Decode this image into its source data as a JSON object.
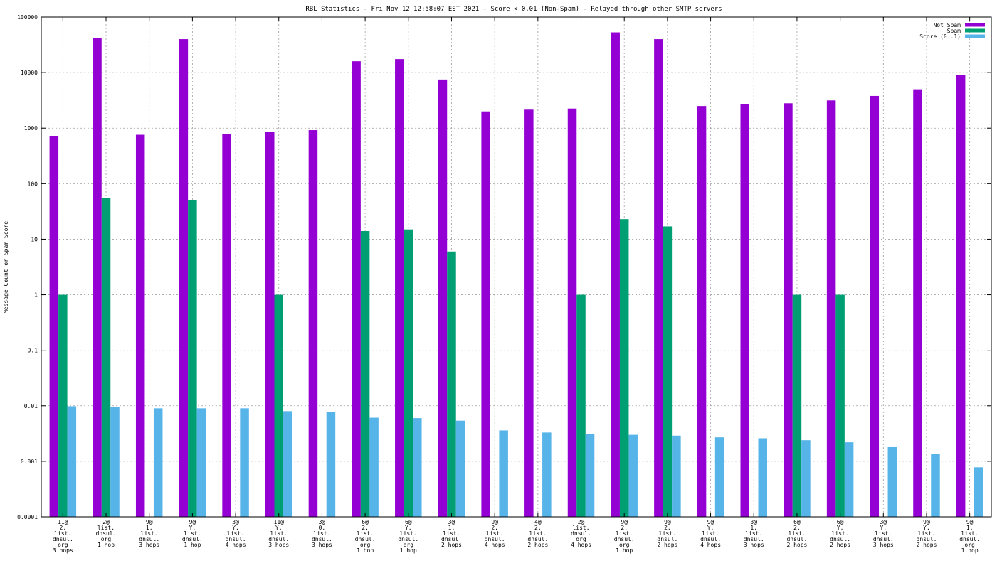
{
  "chart_data": {
    "type": "bar",
    "title": "RBL Statistics - Fri Nov 12 12:58:07 EST 2021 - Score < 0.01 (Non-Spam) - Relayed through other SMTP servers",
    "ylabel": "Message Count or Spam Score",
    "xlabel": "",
    "yscale": "log",
    "ylim": [
      0.0001,
      100000
    ],
    "yticks": [
      {
        "value": 0.0001,
        "label": "0.0001"
      },
      {
        "value": 0.001,
        "label": "0.001"
      },
      {
        "value": 0.01,
        "label": "0.01"
      },
      {
        "value": 0.1,
        "label": "0.1"
      },
      {
        "value": 1,
        "label": "1"
      },
      {
        "value": 10,
        "label": "10"
      },
      {
        "value": 100,
        "label": "100"
      },
      {
        "value": 1000,
        "label": "1000"
      },
      {
        "value": 10000,
        "label": "10000"
      },
      {
        "value": 100000,
        "label": "100000"
      }
    ],
    "grid": true,
    "legend_position": "top-right",
    "categories": [
      [
        "11@",
        "2.",
        "list.",
        "dnsul.",
        "org",
        "3 hops"
      ],
      [
        "2@",
        "list.",
        "dnsul.",
        "org",
        "1 hop"
      ],
      [
        "9@",
        "1.",
        "list.",
        "dnsul.",
        "3 hops"
      ],
      [
        "9@",
        "Y.",
        "list.",
        "dnsul.",
        "1 hop"
      ],
      [
        "3@",
        "Y.",
        "list.",
        "dnsul.",
        "4 hops"
      ],
      [
        "11@",
        "Y.",
        "list.",
        "dnsul.",
        "3 hops"
      ],
      [
        "3@",
        "0.",
        "list.",
        "dnsul.",
        "3 hops"
      ],
      [
        "6@",
        "2.",
        "list.",
        "dnsul.",
        "org",
        "1 hop"
      ],
      [
        "6@",
        "Y.",
        "list.",
        "dnsul.",
        "org",
        "1 hop"
      ],
      [
        "3@",
        "1.",
        "list.",
        "dnsul.",
        "2 hops"
      ],
      [
        "9@",
        "2.",
        "list.",
        "dnsul.",
        "4 hops"
      ],
      [
        "4@",
        "2.",
        "list.",
        "dnsul.",
        "2 hops"
      ],
      [
        "2@",
        "list.",
        "dnsul.",
        "org",
        "4 hops"
      ],
      [
        "9@",
        "2.",
        "list.",
        "dnsul.",
        "org",
        "1 hop"
      ],
      [
        "9@",
        "2.",
        "list.",
        "dnsul.",
        "2 hops"
      ],
      [
        "9@",
        "Y.",
        "list.",
        "dnsul.",
        "4 hops"
      ],
      [
        "3@",
        "1.",
        "list.",
        "dnsul.",
        "3 hops"
      ],
      [
        "6@",
        "2.",
        "list.",
        "dnsul.",
        "2 hops"
      ],
      [
        "6@",
        "Y.",
        "list.",
        "dnsul.",
        "2 hops"
      ],
      [
        "3@",
        "Y.",
        "list.",
        "dnsul.",
        "3 hops"
      ],
      [
        "9@",
        "Y.",
        "list.",
        "dnsul.",
        "2 hops"
      ],
      [
        "9@",
        "1.",
        "list.",
        "dnsul.",
        "org",
        "1 hop"
      ]
    ],
    "series": [
      {
        "name": "Not Spam",
        "color": "#9400d3",
        "values": [
          720,
          42000,
          760,
          40000,
          790,
          860,
          920,
          16000,
          17500,
          7500,
          2000,
          2150,
          2250,
          53000,
          40000,
          2500,
          2700,
          2800,
          3150,
          3800,
          5000,
          9000
        ]
      },
      {
        "name": "Spam",
        "color": "#009e73",
        "values": [
          1,
          56,
          null,
          50,
          null,
          1,
          null,
          14,
          15,
          6,
          null,
          null,
          1,
          23,
          17,
          null,
          null,
          1,
          1,
          null,
          null,
          null
        ]
      },
      {
        "name": "Score (0..1)",
        "color": "#56b4e9",
        "values": [
          0.0098,
          0.0095,
          0.009,
          0.009,
          0.009,
          0.008,
          0.0077,
          0.0061,
          0.006,
          0.0054,
          0.0036,
          0.0033,
          0.0031,
          0.003,
          0.0029,
          0.0027,
          0.0026,
          0.0024,
          0.0022,
          0.0018,
          0.00135,
          0.00078
        ]
      }
    ]
  }
}
